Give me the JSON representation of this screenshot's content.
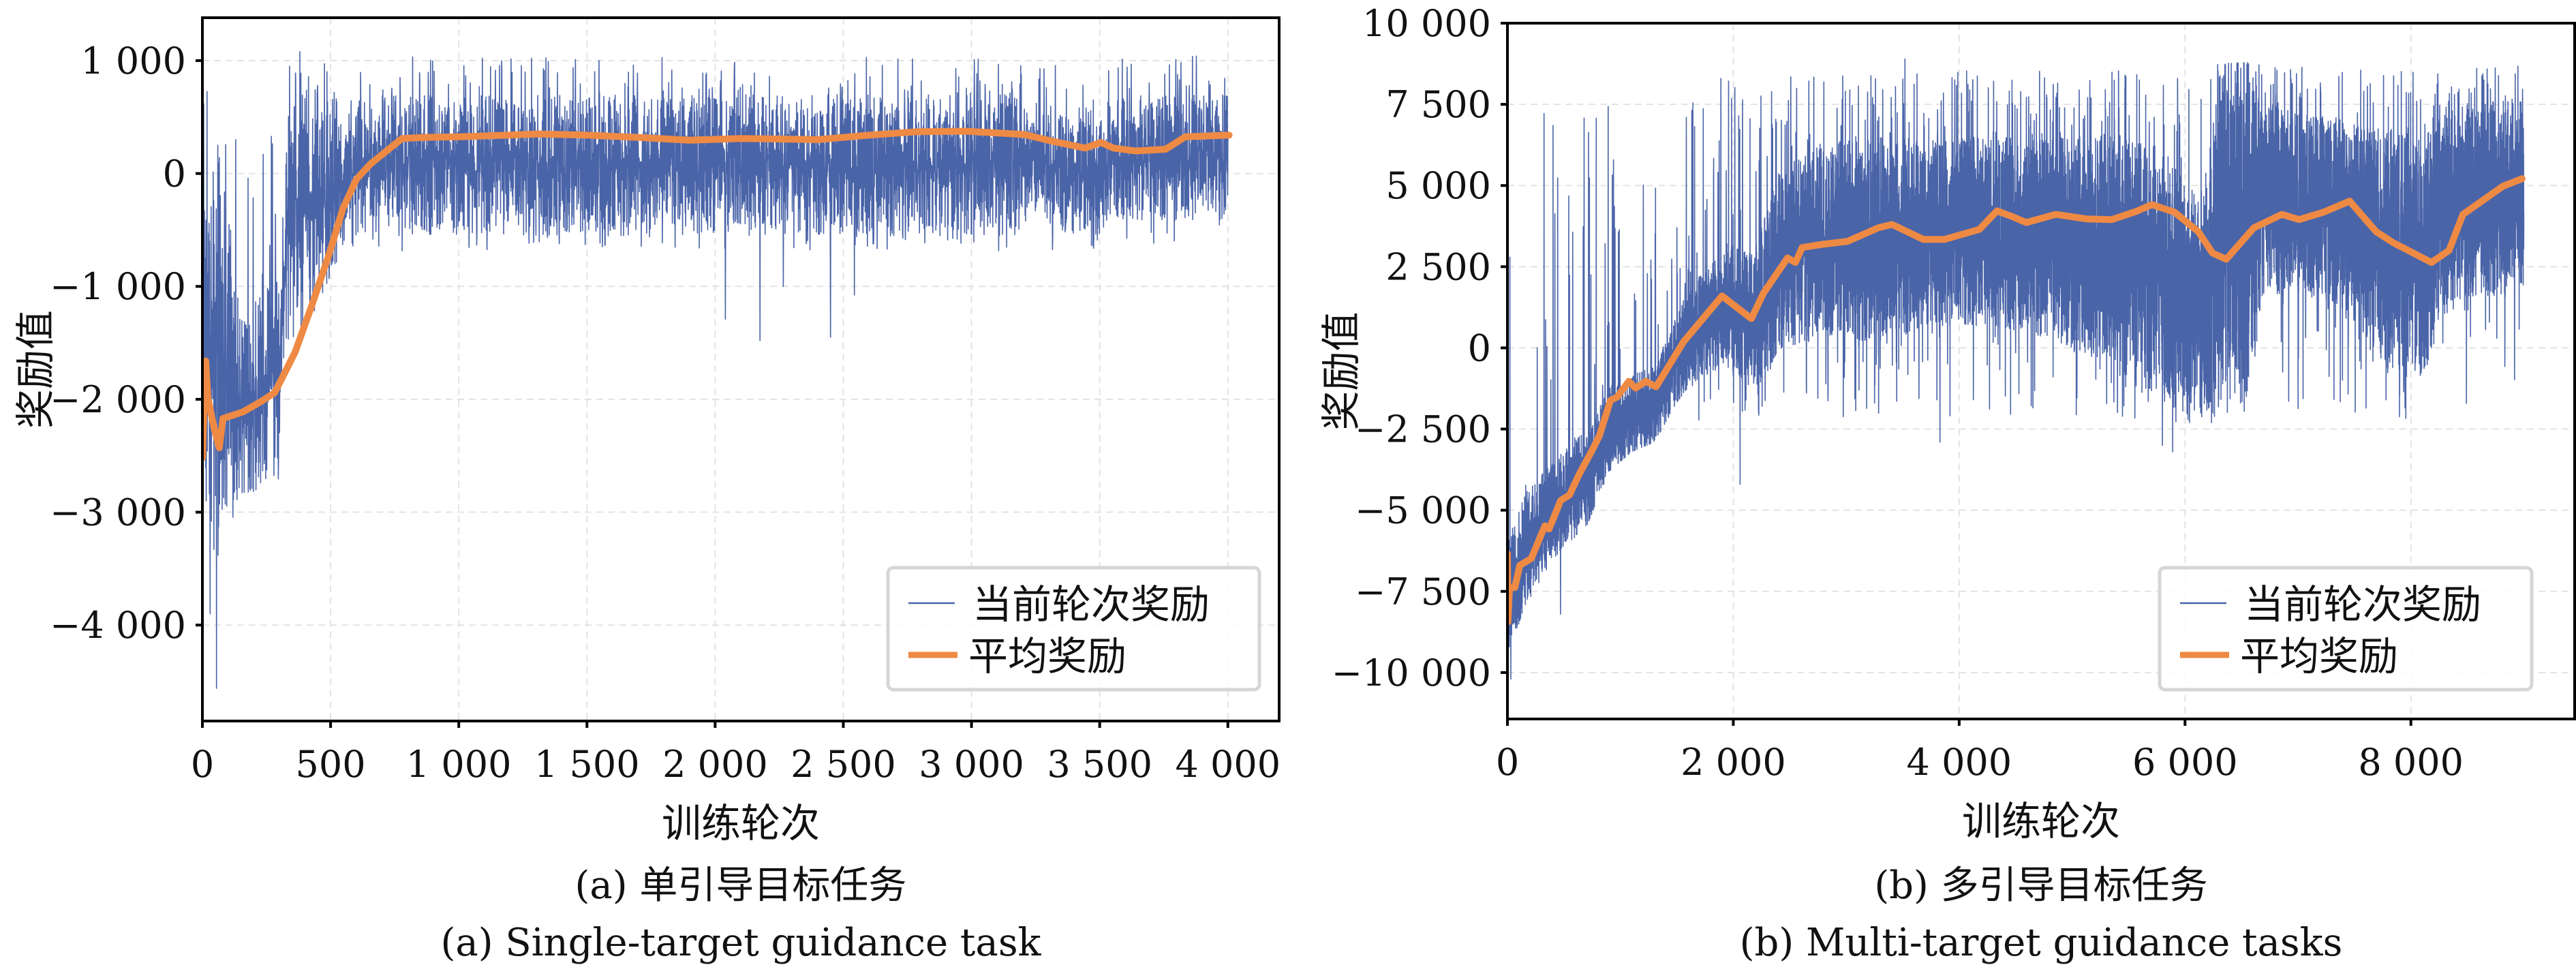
{
  "figure": {
    "legend_labels": [
      "当前轮次奖励",
      "平均奖励"
    ],
    "colors": {
      "episode_reward": "#4a64a8",
      "average_reward": "#ee8a44",
      "grid": "#e3e3e3",
      "legend_border": "#d6d6d6"
    }
  },
  "chart_data": [
    {
      "id": "a",
      "type": "line",
      "title": "",
      "xlabel": "训练轮次",
      "ylabel": "奖励值",
      "caption_cn": "(a) 单引导目标任务",
      "caption_en": "(a) Single-target guidance task",
      "xlim": [
        0,
        4200
      ],
      "ylim": [
        -4850,
        1380
      ],
      "xticks": [
        0,
        500,
        1000,
        1500,
        2000,
        2500,
        3000,
        3500,
        4000
      ],
      "xtick_labels": [
        "0",
        "500",
        "1 000",
        "1 500",
        "2 000",
        "2 500",
        "3 000",
        "3 500",
        "4 000"
      ],
      "yticks": [
        1000,
        0,
        -1000,
        -2000,
        -3000,
        -4000
      ],
      "ytick_labels": [
        "1 000",
        "0",
        "−1 000",
        "−2 000",
        "−3 000",
        "−4 000"
      ],
      "grid": true,
      "legend_position": "lower-right",
      "series": [
        {
          "name": "当前轮次奖励",
          "kind": "noisy-envelope",
          "x_end": 4000,
          "envelope": [
            {
              "x": 0,
              "lo": -2500,
              "hi": -400
            },
            {
              "x": 40,
              "lo": -3600,
              "hi": 250
            },
            {
              "x": 70,
              "lo": -3300,
              "hi": 300
            },
            {
              "x": 150,
              "lo": -2900,
              "hi": -1200
            },
            {
              "x": 300,
              "lo": -2700,
              "hi": -900
            },
            {
              "x": 330,
              "lo": -1500,
              "hi": 500
            },
            {
              "x": 420,
              "lo": -1300,
              "hi": 800
            },
            {
              "x": 540,
              "lo": -700,
              "hi": 650
            },
            {
              "x": 560,
              "lo": -550,
              "hi": 700
            },
            {
              "x": 3200,
              "lo": -550,
              "hi": 700
            },
            {
              "x": 3230,
              "lo": -300,
              "hi": 450
            },
            {
              "x": 3320,
              "lo": -500,
              "hi": 600
            },
            {
              "x": 3500,
              "lo": -600,
              "hi": 500
            },
            {
              "x": 3530,
              "lo": -400,
              "hi": 700
            },
            {
              "x": 4000,
              "lo": -450,
              "hi": 700
            }
          ],
          "spike_hi": 1080,
          "spike_lo": -700,
          "outliers": [
            {
              "x": 55,
              "y": -4560
            },
            {
              "x": 30,
              "y": -3900
            },
            {
              "x": 60,
              "y": 250
            },
            {
              "x": 130,
              "y": 300
            },
            {
              "x": 340,
              "y": 950
            },
            {
              "x": 380,
              "y": 1080
            },
            {
              "x": 2040,
              "y": -1290
            },
            {
              "x": 2175,
              "y": -1480
            },
            {
              "x": 2266,
              "y": -1000
            },
            {
              "x": 2450,
              "y": -1450
            },
            {
              "x": 2543,
              "y": -1075
            }
          ]
        },
        {
          "name": "平均奖励",
          "kind": "line",
          "points": [
            [
              0,
              -2520
            ],
            [
              13,
              -1660
            ],
            [
              21,
              -1980
            ],
            [
              45,
              -2250
            ],
            [
              66,
              -2430
            ],
            [
              80,
              -2170
            ],
            [
              160,
              -2110
            ],
            [
              229,
              -2020
            ],
            [
              282,
              -1940
            ],
            [
              327,
              -1740
            ],
            [
              362,
              -1580
            ],
            [
              425,
              -1180
            ],
            [
              495,
              -710
            ],
            [
              548,
              -310
            ],
            [
              601,
              -50
            ],
            [
              654,
              80
            ],
            [
              718,
              200
            ],
            [
              779,
              310
            ],
            [
              868,
              320
            ],
            [
              1000,
              325
            ],
            [
              1311,
              350
            ],
            [
              1500,
              340
            ],
            [
              1700,
              320
            ],
            [
              1900,
              295
            ],
            [
              2100,
              310
            ],
            [
              2402,
              300
            ],
            [
              2600,
              340
            ],
            [
              2787,
              370
            ],
            [
              2976,
              375
            ],
            [
              3207,
              345
            ],
            [
              3317,
              285
            ],
            [
              3444,
              225
            ],
            [
              3505,
              275
            ],
            [
              3554,
              225
            ],
            [
              3641,
              200
            ],
            [
              3757,
              215
            ],
            [
              3834,
              325
            ],
            [
              4005,
              340
            ]
          ]
        }
      ]
    },
    {
      "id": "b",
      "type": "line",
      "title": "",
      "xlabel": "训练轮次",
      "ylabel": "奖励值",
      "caption_cn": "(b) 多引导目标任务",
      "caption_en": "(b) Multi-target guidance tasks",
      "xlim": [
        0,
        9450
      ],
      "ylim": [
        -11430,
        10000
      ],
      "xticks": [
        0,
        2000,
        4000,
        6000,
        8000
      ],
      "xtick_labels": [
        "0",
        "2 000",
        "4 000",
        "6 000",
        "8 000"
      ],
      "yticks": [
        10000,
        7500,
        5000,
        2500,
        0,
        -2500,
        -5000,
        -7500,
        -10000
      ],
      "ytick_labels": [
        "10 000",
        "7 500",
        "5 000",
        "2 500",
        "0",
        "−2 500",
        "−5 000",
        "−7 500",
        "−10 000"
      ],
      "grid": true,
      "legend_position": "lower-right",
      "series": [
        {
          "name": "当前轮次奖励",
          "kind": "noisy-envelope",
          "x_end": 9000,
          "envelope": [
            {
              "x": 0,
              "lo": -9500,
              "hi": -6000
            },
            {
              "x": 150,
              "lo": -8000,
              "hi": -4500
            },
            {
              "x": 400,
              "lo": -6500,
              "hi": -3500
            },
            {
              "x": 700,
              "lo": -5500,
              "hi": -2500
            },
            {
              "x": 900,
              "lo": -3800,
              "hi": -1200
            },
            {
              "x": 1100,
              "lo": -3200,
              "hi": -800
            },
            {
              "x": 1300,
              "lo": -2900,
              "hi": -600
            },
            {
              "x": 1600,
              "lo": -1200,
              "hi": 1800
            },
            {
              "x": 1900,
              "lo": -600,
              "hi": 3000
            },
            {
              "x": 2200,
              "lo": -1400,
              "hi": 3200
            },
            {
              "x": 2400,
              "lo": -100,
              "hi": 5500
            },
            {
              "x": 2800,
              "lo": 300,
              "hi": 6300
            },
            {
              "x": 3300,
              "lo": 200,
              "hi": 6500
            },
            {
              "x": 3700,
              "lo": 600,
              "hi": 6500
            },
            {
              "x": 4300,
              "lo": 700,
              "hi": 6500
            },
            {
              "x": 4800,
              "lo": 300,
              "hi": 6500
            },
            {
              "x": 5300,
              "lo": -600,
              "hi": 6600
            },
            {
              "x": 5700,
              "lo": -1500,
              "hi": 6400
            },
            {
              "x": 6000,
              "lo": -2000,
              "hi": 5200
            },
            {
              "x": 6150,
              "lo": -2000,
              "hi": 4500
            },
            {
              "x": 6300,
              "lo": -1800,
              "hi": 8700
            },
            {
              "x": 6600,
              "lo": -1600,
              "hi": 8800
            },
            {
              "x": 6680,
              "lo": 1500,
              "hi": 7600
            },
            {
              "x": 7000,
              "lo": 1800,
              "hi": 7300
            },
            {
              "x": 7400,
              "lo": 1200,
              "hi": 7000
            },
            {
              "x": 7800,
              "lo": -800,
              "hi": 6800
            },
            {
              "x": 8100,
              "lo": -1000,
              "hi": 6600
            },
            {
              "x": 8300,
              "lo": 1000,
              "hi": 7200
            },
            {
              "x": 8500,
              "lo": 1600,
              "hi": 7600
            },
            {
              "x": 9000,
              "lo": 1500,
              "hi": 7700
            }
          ],
          "spike_hi": 8800,
          "spike_lo": -2400,
          "outliers": [
            {
              "x": 30,
              "y": -10200
            },
            {
              "x": 470,
              "y": -8200
            },
            {
              "x": 1890,
              "y": 8300
            },
            {
              "x": 2300,
              "y": 5900
            },
            {
              "x": 2060,
              "y": -4200
            },
            {
              "x": 3520,
              "y": 8900
            },
            {
              "x": 3830,
              "y": -2900
            },
            {
              "x": 5800,
              "y": -3000
            },
            {
              "x": 5890,
              "y": -3200
            },
            {
              "x": 7780,
              "y": -1600
            }
          ]
        },
        {
          "name": "平均奖励",
          "kind": "line",
          "points": [
            [
              0,
              -6340
            ],
            [
              5,
              -8440
            ],
            [
              18,
              -7400
            ],
            [
              66,
              -7380
            ],
            [
              109,
              -6700
            ],
            [
              211,
              -6490
            ],
            [
              332,
              -5480
            ],
            [
              369,
              -5580
            ],
            [
              471,
              -4700
            ],
            [
              550,
              -4530
            ],
            [
              634,
              -3900
            ],
            [
              755,
              -3120
            ],
            [
              815,
              -2700
            ],
            [
              912,
              -1620
            ],
            [
              973,
              -1510
            ],
            [
              1075,
              -1030
            ],
            [
              1135,
              -1240
            ],
            [
              1226,
              -1030
            ],
            [
              1316,
              -1200
            ],
            [
              1560,
              190
            ],
            [
              1900,
              1600
            ],
            [
              2160,
              900
            ],
            [
              2270,
              1700
            ],
            [
              2480,
              2770
            ],
            [
              2550,
              2630
            ],
            [
              2610,
              3090
            ],
            [
              2790,
              3190
            ],
            [
              3010,
              3280
            ],
            [
              3285,
              3700
            ],
            [
              3406,
              3800
            ],
            [
              3684,
              3340
            ],
            [
              3870,
              3340
            ],
            [
              4180,
              3650
            ],
            [
              4335,
              4220
            ],
            [
              4457,
              4060
            ],
            [
              4595,
              3860
            ],
            [
              4855,
              4110
            ],
            [
              5132,
              3970
            ],
            [
              5350,
              3950
            ],
            [
              5567,
              4200
            ],
            [
              5706,
              4410
            ],
            [
              5906,
              4180
            ],
            [
              6117,
              3580
            ],
            [
              6243,
              2920
            ],
            [
              6365,
              2730
            ],
            [
              6610,
              3700
            ],
            [
              6857,
              4110
            ],
            [
              7010,
              3950
            ],
            [
              7227,
              4180
            ],
            [
              7458,
              4520
            ],
            [
              7692,
              3580
            ],
            [
              7843,
              3240
            ],
            [
              8182,
              2630
            ],
            [
              8338,
              3000
            ],
            [
              8461,
              4110
            ],
            [
              8600,
              4450
            ],
            [
              8816,
              4980
            ],
            [
              8985,
              5210
            ]
          ]
        }
      ]
    }
  ]
}
